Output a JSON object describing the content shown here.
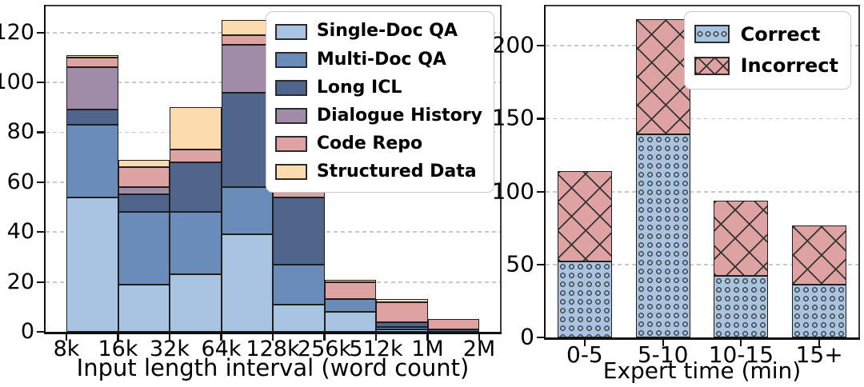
{
  "page": {
    "background": "#ffffff"
  },
  "chart_data": [
    {
      "id": "input-length-histogram",
      "type": "bar",
      "stacked": true,
      "title": "",
      "xlabel": "Input length interval (word count)",
      "ylabel": "",
      "grid": "dashed-horizontal",
      "legend_position": "upper-right",
      "x_ticks_at": "bin-edges",
      "x_tick_labels": [
        "8k",
        "16k",
        "32k",
        "64k",
        "128k",
        "256k",
        "512k",
        "1M",
        "2M"
      ],
      "categories": [
        "8k-16k",
        "16k-32k",
        "32k-64k",
        "64k-128k",
        "128k-256k",
        "256k-512k",
        "512k-1M",
        "1M-2M"
      ],
      "yticks": [
        0,
        20,
        40,
        60,
        80,
        100,
        120
      ],
      "ylim": [
        0,
        130.5
      ],
      "bar_totals": [
        111,
        69,
        90,
        125,
        69,
        21,
        13,
        5
      ],
      "series": [
        {
          "name": "Single-Doc QA",
          "color": "#a8c4e0",
          "values": [
            54,
            19,
            23,
            39,
            11,
            8,
            1,
            0
          ]
        },
        {
          "name": "Multi-Doc QA",
          "color": "#698cb9",
          "values": [
            29,
            29,
            25,
            19,
            16,
            5,
            1,
            0
          ]
        },
        {
          "name": "Long ICL",
          "color": "#4f658c",
          "values": [
            6,
            7,
            20,
            38,
            27,
            0,
            2,
            1
          ]
        },
        {
          "name": "Dialogue History",
          "color": "#a08ca6",
          "values": [
            17,
            3,
            0,
            19,
            0,
            0,
            0,
            0
          ]
        },
        {
          "name": "Code Repo",
          "color": "#dea2a2",
          "values": [
            4,
            8,
            5,
            4,
            11,
            7,
            8,
            4
          ]
        },
        {
          "name": "Structured Data",
          "color": "#fcdbae",
          "values": [
            1,
            3,
            17,
            6,
            4,
            1,
            1,
            0
          ]
        }
      ]
    },
    {
      "id": "expert-time-histogram",
      "type": "bar",
      "stacked": true,
      "title": "",
      "xlabel": "Expert time (min)",
      "ylabel": "",
      "grid": "dashed-horizontal",
      "legend_position": "upper-right",
      "x_ticks_at": "bar-centers",
      "x_tick_labels": [
        "0-5",
        "5-10",
        "10-15",
        "15+"
      ],
      "categories": [
        "0-5",
        "5-10",
        "10-15",
        "15+"
      ],
      "yticks": [
        0,
        50,
        100,
        150,
        200
      ],
      "ylim": [
        0,
        227
      ],
      "bar_totals": [
        114,
        218,
        94,
        77
      ],
      "series": [
        {
          "name": "Correct",
          "color": "#a8c4e0",
          "hatch": "circles",
          "values": [
            52,
            139,
            42,
            36
          ]
        },
        {
          "name": "Incorrect",
          "color": "#dea2a2",
          "hatch": "cross",
          "values": [
            62,
            79,
            52,
            41
          ]
        }
      ]
    }
  ]
}
